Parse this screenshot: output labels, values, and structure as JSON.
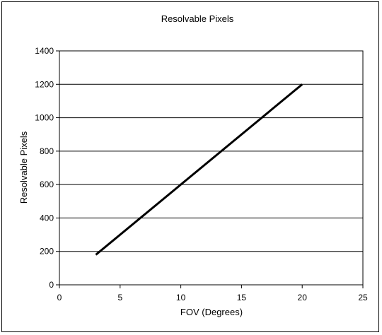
{
  "chart_data": {
    "type": "line",
    "title": "Resolvable Pixels",
    "xlabel": "FOV (Degrees)",
    "ylabel": "Resolvable Pixels",
    "xlim": [
      0,
      25
    ],
    "ylim": [
      0,
      1400
    ],
    "xticks": [
      0,
      5,
      10,
      15,
      20,
      25
    ],
    "yticks": [
      0,
      200,
      400,
      600,
      800,
      1000,
      1200,
      1400
    ],
    "grid": "horizontal",
    "legend": "none",
    "line_color": "#000000",
    "series": [
      {
        "x": [
          3,
          20
        ],
        "y": [
          180,
          1200
        ]
      }
    ]
  }
}
